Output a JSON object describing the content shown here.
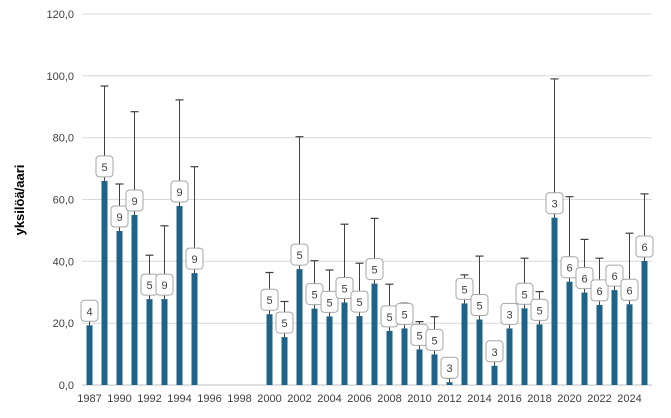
{
  "chart_data": {
    "type": "bar",
    "title": "",
    "ylabel": "yksilöä/aari",
    "xlabel": "",
    "ylim": [
      0,
      120
    ],
    "y_tick_values": [
      0,
      20,
      40,
      60,
      80,
      100,
      120
    ],
    "y_tick_labels": [
      "0,0",
      "20,0",
      "40,0",
      "60,0",
      "80,0",
      "100,0",
      "120,0"
    ],
    "grid": true,
    "legend_position": "none",
    "bar_color": "#1f6388",
    "error_bar_color": "#404040",
    "categories": [
      "1987",
      "1989",
      "1990",
      "1991",
      "1992",
      "1993",
      "1994",
      "1995",
      "1996",
      "1997",
      "1998",
      "1999",
      "2000",
      "2001",
      "2002",
      "2003",
      "2004",
      "2005",
      "2006",
      "2007",
      "2008",
      "2009",
      "2010",
      "2011",
      "2012",
      "2013",
      "2014",
      "2015",
      "2016",
      "2017",
      "2018",
      "2019",
      "2020",
      "2021",
      "2022",
      "2023",
      "2024",
      "2025"
    ],
    "x_tick_labels": [
      "1987",
      "1990",
      "1992",
      "1994",
      "1996",
      "1998",
      "2000",
      "2002",
      "2004",
      "2006",
      "2008",
      "2010",
      "2012",
      "2014",
      "2016",
      "2018",
      "2020",
      "2022",
      "2024"
    ],
    "points": [
      {
        "year": "1987",
        "value": 19.3,
        "error_top": 22.3,
        "label": "4"
      },
      {
        "year": "1989",
        "value": 66.0,
        "error_top": 96.7,
        "label": "5"
      },
      {
        "year": "1990",
        "value": 49.8,
        "error_top": 65.0,
        "label": "9"
      },
      {
        "year": "1991",
        "value": 55.0,
        "error_top": 88.4,
        "label": "9"
      },
      {
        "year": "1992",
        "value": 27.8,
        "error_top": 42.0,
        "label": "5"
      },
      {
        "year": "1993",
        "value": 27.8,
        "error_top": 51.5,
        "label": "9"
      },
      {
        "year": "1994",
        "value": 57.9,
        "error_top": 92.2,
        "label": "9"
      },
      {
        "year": "1995",
        "value": 36.2,
        "error_top": 70.6,
        "label": "9"
      },
      {
        "year": "2000",
        "value": 22.9,
        "error_top": 36.4,
        "label": "5"
      },
      {
        "year": "2001",
        "value": 15.5,
        "error_top": 27.0,
        "label": "5"
      },
      {
        "year": "2002",
        "value": 37.5,
        "error_top": 80.3,
        "label": "5"
      },
      {
        "year": "2003",
        "value": 24.7,
        "error_top": 40.2,
        "label": "5"
      },
      {
        "year": "2004",
        "value": 22.2,
        "error_top": 37.2,
        "label": "5"
      },
      {
        "year": "2005",
        "value": 26.7,
        "error_top": 52.0,
        "label": "5"
      },
      {
        "year": "2006",
        "value": 22.3,
        "error_top": 39.4,
        "label": "5"
      },
      {
        "year": "2007",
        "value": 32.8,
        "error_top": 53.9,
        "label": "5"
      },
      {
        "year": "2008",
        "value": 17.5,
        "error_top": 32.6,
        "label": "5"
      },
      {
        "year": "2009",
        "value": 18.3,
        "error_top": 26.5,
        "label": "5"
      },
      {
        "year": "2010",
        "value": 11.5,
        "error_top": 20.5,
        "label": "5"
      },
      {
        "year": "2011",
        "value": 9.9,
        "error_top": 22.1,
        "label": "5"
      },
      {
        "year": "2012",
        "value": 0.9,
        "error_top": 2.2,
        "label": "3"
      },
      {
        "year": "2013",
        "value": 26.4,
        "error_top": 35.6,
        "label": "5"
      },
      {
        "year": "2014",
        "value": 21.2,
        "error_top": 41.7,
        "label": "5"
      },
      {
        "year": "2015",
        "value": 6.2,
        "error_top": 9.7,
        "label": "3"
      },
      {
        "year": "2016",
        "value": 18.3,
        "error_top": 26.0,
        "label": "3"
      },
      {
        "year": "2017",
        "value": 24.8,
        "error_top": 41.0,
        "label": "5"
      },
      {
        "year": "2018",
        "value": 19.6,
        "error_top": 30.2,
        "label": "5"
      },
      {
        "year": "2019",
        "value": 54.1,
        "error_top": 99.0,
        "label": "3"
      },
      {
        "year": "2020",
        "value": 33.4,
        "error_top": 60.9,
        "label": "6"
      },
      {
        "year": "2021",
        "value": 29.9,
        "error_top": 47.1,
        "label": "6"
      },
      {
        "year": "2022",
        "value": 25.9,
        "error_top": 41.0,
        "label": "6"
      },
      {
        "year": "2023",
        "value": 30.7,
        "error_top": 35.0,
        "label": "6"
      },
      {
        "year": "2024",
        "value": 26.1,
        "error_top": 49.1,
        "label": "6"
      },
      {
        "year": "2025",
        "value": 40.1,
        "error_top": 61.8,
        "label": "6"
      }
    ]
  },
  "style": {
    "background": "#ffffff",
    "grid_color": "#d9d9d9",
    "axis_line_color": "#bfbfbf",
    "tick_text_color": "#404040",
    "axis_title_color": "#000000",
    "label_box_fill": "#ffffff",
    "label_box_border": "#a6a6a6",
    "label_text_color": "#404040"
  }
}
